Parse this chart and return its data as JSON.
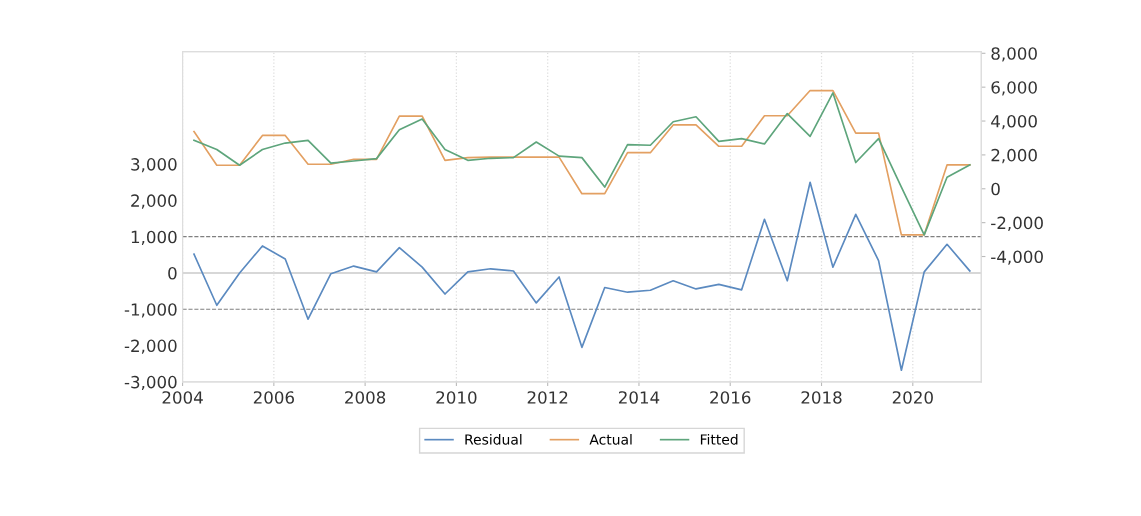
{
  "chart_data": {
    "type": "line",
    "x": [
      2004.25,
      2004.75,
      2005.25,
      2005.75,
      2006.25,
      2006.75,
      2007.25,
      2007.75,
      2008.25,
      2008.75,
      2009.25,
      2009.75,
      2010.25,
      2010.75,
      2011.25,
      2011.75,
      2012.25,
      2012.75,
      2013.25,
      2013.75,
      2014.25,
      2014.75,
      2015.25,
      2015.75,
      2016.25,
      2016.75,
      2017.25,
      2017.75,
      2018.25,
      2018.75,
      2019.25,
      2019.75,
      2020.25,
      2020.75,
      2021.25
    ],
    "series": [
      {
        "name": "Residual",
        "color": "#5b8ac0",
        "values": [
          520,
          -890,
          0,
          745,
          385,
          -1275,
          -20,
          190,
          30,
          700,
          160,
          -580,
          30,
          115,
          55,
          -825,
          -110,
          -2050,
          -400,
          -530,
          -475,
          -215,
          -440,
          -315,
          -465,
          1480,
          -215,
          2500,
          160,
          1615,
          340,
          -2680,
          30,
          790,
          55
        ]
      },
      {
        "name": "Actual",
        "color": "#e3a062",
        "axis": "y2",
        "values": [
          3380,
          1390,
          1390,
          3150,
          3150,
          1450,
          1450,
          1740,
          1740,
          4290,
          4290,
          1680,
          1840,
          1870,
          1870,
          1870,
          1870,
          -290,
          -290,
          2130,
          2130,
          3770,
          3770,
          2510,
          2510,
          4310,
          4310,
          5800,
          5800,
          3290,
          3290,
          -2720,
          -2720,
          1410,
          1410
        ]
      },
      {
        "name": "Fitted",
        "color": "#5ea57c",
        "axis": "y2",
        "values": [
          2860,
          2320,
          1390,
          2320,
          2700,
          2860,
          1510,
          1640,
          1780,
          3480,
          4120,
          2320,
          1680,
          1800,
          1840,
          2760,
          1930,
          1840,
          100,
          2610,
          2570,
          3960,
          4250,
          2800,
          2960,
          2650,
          4440,
          3090,
          5660,
          1550,
          2960,
          100,
          -2720,
          680,
          1410
        ]
      }
    ],
    "xlim": [
      2004,
      2021.5
    ],
    "xticks": [
      2004,
      2006,
      2008,
      2010,
      2012,
      2014,
      2016,
      2018,
      2020
    ],
    "ylim": [
      -3000,
      6100
    ],
    "yticks": [
      {
        "value": -3000,
        "label": "-3,000"
      },
      {
        "value": -2000,
        "label": "-2,000"
      },
      {
        "value": -1000,
        "label": "-1,000"
      },
      0,
      {
        "value": 1000,
        "label": "1,000"
      },
      {
        "value": 2000,
        "label": "2,000"
      },
      {
        "value": 3000,
        "label": "3,000"
      }
    ],
    "y2lim": [
      -11400,
      8100
    ],
    "y2ticks": [
      {
        "value": -4000,
        "label": "-4,000"
      },
      {
        "value": -2000,
        "label": "-2,000"
      },
      0,
      {
        "value": 2000,
        "label": "2,000"
      },
      {
        "value": 4000,
        "label": "4,000"
      },
      {
        "value": 6000,
        "label": "6,000"
      },
      {
        "value": 8000,
        "label": "8,000"
      }
    ],
    "ref_lines": [
      {
        "axis": "y",
        "value": 1000,
        "color": "#808080",
        "line_style": "dashed"
      },
      {
        "axis": "y",
        "value": 0,
        "color": "#b0b0b0",
        "line_style": "solid"
      },
      {
        "axis": "y",
        "value": -1000,
        "color": "#808080",
        "line_style": "dashed"
      }
    ],
    "grid": "x",
    "legend": "bottom",
    "line_style": "solid",
    "marker": "none"
  }
}
